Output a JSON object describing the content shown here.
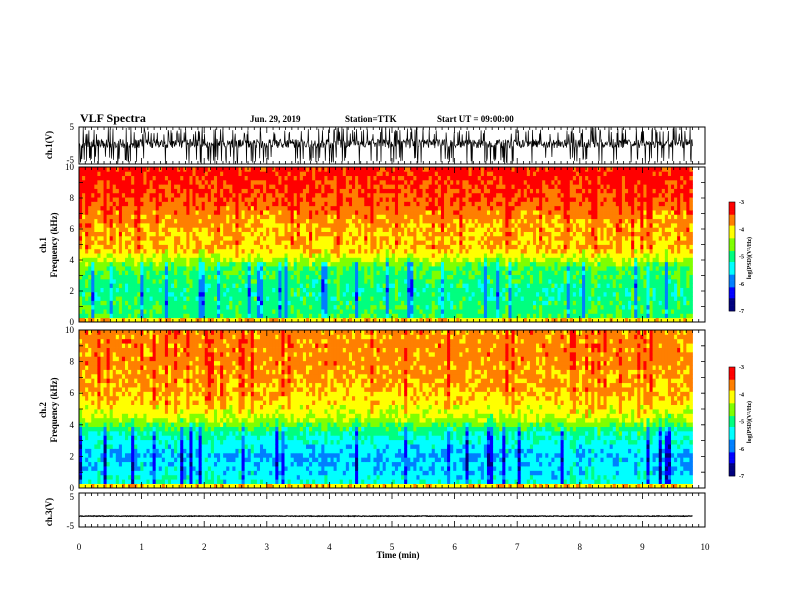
{
  "header": {
    "title": "VLF Spectra",
    "date": "Jun. 29, 2019",
    "station": "Station=TTK",
    "start_time": "Start UT = 09:00:00"
  },
  "colormap": [
    "#00007f",
    "#0000ff",
    "#007fff",
    "#00ffff",
    "#00ff7f",
    "#7fff00",
    "#ffff00",
    "#ff7f00",
    "#ff0000",
    "#ffffff"
  ],
  "chart_data": [
    {
      "type": "line",
      "name": "ch1-waveform",
      "ylabel": "ch.1(V)",
      "ylim": [
        -5,
        5
      ],
      "yticks": [
        "5",
        "-5"
      ],
      "xlim": [
        0,
        10
      ],
      "description_values": {
        "baseline": 0.5,
        "typical_amplitude": 2.0,
        "peak_amplitude": 5.0
      }
    },
    {
      "type": "heatmap",
      "name": "ch1-spectrogram",
      "ylabel_line1": "ch.1",
      "ylabel_line2": "Frequency (kHz)",
      "ylim": [
        0,
        10
      ],
      "yticks": [
        "0",
        "2",
        "4",
        "6",
        "8",
        "10"
      ],
      "xlim": [
        0,
        9.8
      ],
      "colorbar": {
        "label": "log(PSD)(V²/Hz)",
        "range": [
          -7,
          -3
        ],
        "ticks": [
          "-3",
          "-4",
          "-5",
          "-6",
          "-7"
        ]
      },
      "band_profile_log_psd": {
        "freq_khz": [
          0.5,
          2,
          3.5,
          4.5,
          6,
          8,
          9.5
        ],
        "log_psd": [
          -4.9,
          -5.1,
          -4.8,
          -4.0,
          -3.9,
          -3.5,
          -3.3
        ]
      }
    },
    {
      "type": "heatmap",
      "name": "ch2-spectrogram",
      "ylabel_line1": "ch.2",
      "ylabel_line2": "Frequency (kHz)",
      "ylim": [
        0,
        10
      ],
      "yticks": [
        "0",
        "2",
        "4",
        "6",
        "8",
        "10"
      ],
      "xlim": [
        0,
        9.8
      ],
      "colorbar": {
        "label": "log(PSD)(V²/Hz)",
        "range": [
          -7,
          -3
        ],
        "ticks": [
          "-3",
          "-4",
          "-5",
          "-6",
          "-7"
        ]
      },
      "band_profile_log_psd": {
        "freq_khz": [
          0.5,
          2,
          3.5,
          4.5,
          6,
          8,
          9.5
        ],
        "log_psd": [
          -5.4,
          -5.7,
          -5.2,
          -4.3,
          -3.9,
          -3.7,
          -3.7
        ]
      }
    },
    {
      "type": "line",
      "name": "ch3-waveform",
      "ylabel": "ch.3(V)",
      "ylim": [
        -5,
        5
      ],
      "yticks": [
        "5",
        "-5"
      ],
      "xlim": [
        0,
        10
      ],
      "description_values": {
        "constant_level": -1.8
      }
    }
  ],
  "xaxis": {
    "label": "Time (min)",
    "ticks": [
      "0",
      "1",
      "2",
      "3",
      "4",
      "5",
      "6",
      "7",
      "8",
      "9",
      "10"
    ],
    "range": [
      0,
      10
    ]
  }
}
